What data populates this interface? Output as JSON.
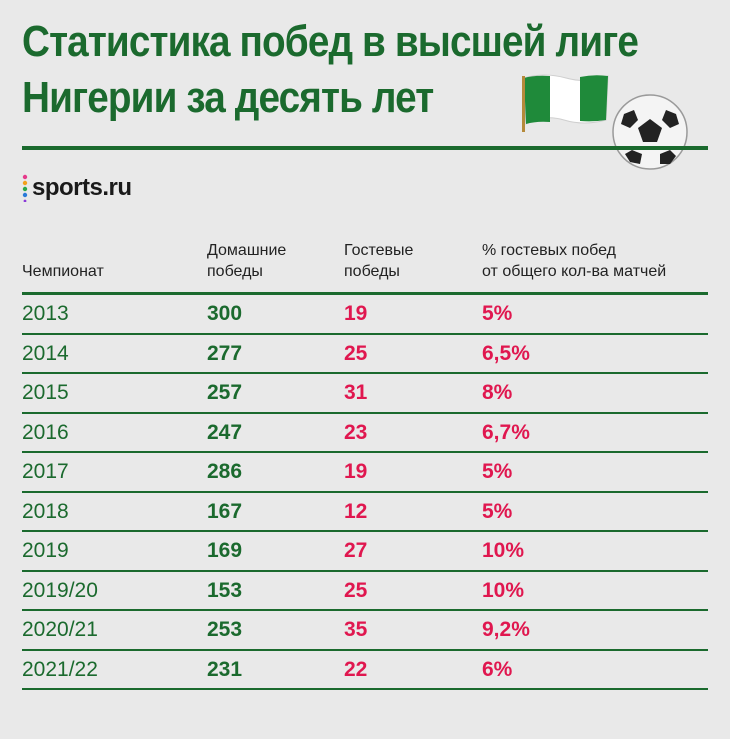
{
  "title": {
    "line1": "Статистика побед в высшей лиге",
    "line2": "Нигерии за десять лет"
  },
  "brand": {
    "logo_text": "sports.ru"
  },
  "colors": {
    "green": "#1b6a2e",
    "red": "#e0174f",
    "background": "#e9e9e9"
  },
  "icons": {
    "flag": "nigeria-flag-icon",
    "ball": "soccer-ball-icon"
  },
  "chart_data": {
    "type": "table",
    "columns": [
      "Чемпионат",
      "Домашние победы",
      "Гостевые победы",
      "% гостевых побед от общего кол-ва матчей"
    ],
    "rows": [
      [
        "2013",
        "300",
        "19",
        "5%"
      ],
      [
        "2014",
        "277",
        "25",
        "6,5%"
      ],
      [
        "2015",
        "257",
        "31",
        "8%"
      ],
      [
        "2016",
        "247",
        "23",
        "6,7%"
      ],
      [
        "2017",
        "286",
        "19",
        "5%"
      ],
      [
        "2018",
        "167",
        "12",
        "5%"
      ],
      [
        "2019",
        "169",
        "27",
        "10%"
      ],
      [
        "2019/20",
        "153",
        "25",
        "10%"
      ],
      [
        "2020/21",
        "253",
        "35",
        "9,2%"
      ],
      [
        "2021/22",
        "231",
        "22",
        "6%"
      ]
    ]
  }
}
